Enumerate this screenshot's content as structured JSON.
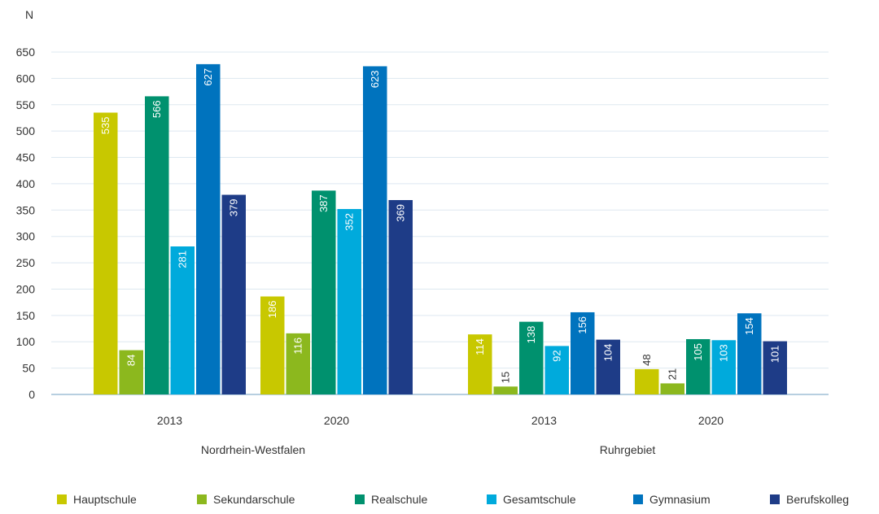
{
  "chart_data": {
    "type": "bar",
    "ylabel": "N",
    "ylim": [
      0,
      650
    ],
    "yticks": [
      0,
      50,
      100,
      150,
      200,
      250,
      300,
      350,
      400,
      450,
      500,
      550,
      600,
      650
    ],
    "grid": true,
    "legend_position": "bottom",
    "regions": [
      {
        "label": "Nordrhein-Westfalen",
        "groups": [
          {
            "label": "2013",
            "values": [
              535,
              84,
              566,
              281,
              627,
              379
            ]
          },
          {
            "label": "2020",
            "values": [
              186,
              116,
              387,
              352,
              623,
              369
            ]
          }
        ]
      },
      {
        "label": "Ruhrgebiet",
        "groups": [
          {
            "label": "2013",
            "values": [
              114,
              15,
              138,
              92,
              156,
              104
            ]
          },
          {
            "label": "2020",
            "values": [
              48,
              21,
              105,
              103,
              154,
              101
            ]
          }
        ]
      }
    ],
    "series": [
      {
        "name": "Hauptschule",
        "color": "#c8c800",
        "label_color": "#ffffff"
      },
      {
        "name": "Sekundarschule",
        "color": "#8cb81e",
        "label_color": "#ffffff"
      },
      {
        "name": "Realschule",
        "color": "#00916e",
        "label_color": "#ffffff"
      },
      {
        "name": "Gesamtschule",
        "color": "#00aadc",
        "label_color": "#ffffff"
      },
      {
        "name": "Gymnasium",
        "color": "#0073be",
        "label_color": "#ffffff"
      },
      {
        "name": "Berufskolleg",
        "color": "#1e3c87",
        "label_color": "#ffffff"
      }
    ],
    "colors": {
      "grid": "#dde8f0",
      "axis": "#6f9fc0"
    }
  }
}
